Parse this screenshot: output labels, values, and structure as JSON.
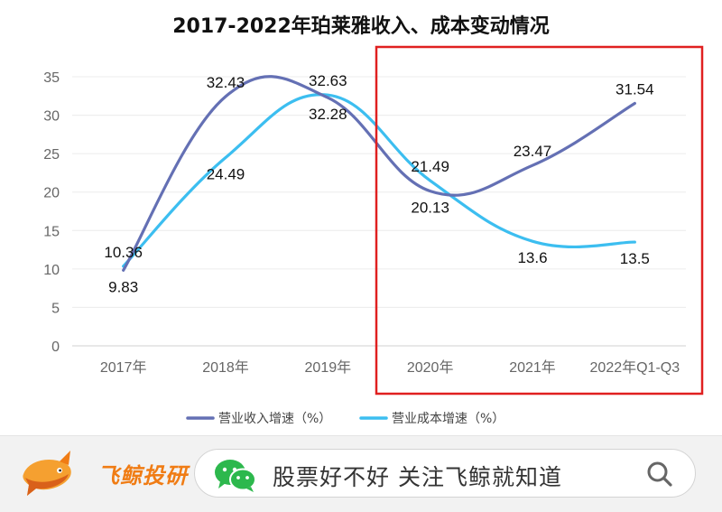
{
  "chart_data": {
    "type": "line",
    "title": "2017-2022年珀莱雅收入、成本变动情况",
    "categories": [
      "2017年",
      "2018年",
      "2019年",
      "2020年",
      "2021年",
      "2022年Q1-Q3"
    ],
    "ylim": [
      0,
      35
    ],
    "yticks": [
      "0",
      "5",
      "10",
      "15",
      "20",
      "25",
      "30",
      "35"
    ],
    "grid": true,
    "legend": "bottom",
    "smooth": true,
    "series": [
      {
        "name": "营业收入增速（%）",
        "color": "#6470b4",
        "values": [
          9.83,
          32.43,
          32.28,
          20.13,
          23.47,
          31.54
        ]
      },
      {
        "name": "营业成本增速（%）",
        "color": "#3cbef0",
        "values": [
          10.36,
          24.49,
          32.63,
          21.49,
          13.6,
          13.5
        ]
      }
    ],
    "data_labels": [
      {
        "series": 0,
        "index": 0,
        "text": "9.83"
      },
      {
        "series": 0,
        "index": 1,
        "text": "32.43"
      },
      {
        "series": 0,
        "index": 2,
        "text": "32.28"
      },
      {
        "series": 0,
        "index": 3,
        "text": "20.13"
      },
      {
        "series": 0,
        "index": 4,
        "text": "23.47"
      },
      {
        "series": 0,
        "index": 5,
        "text": "31.54"
      },
      {
        "series": 1,
        "index": 0,
        "text": "10.36"
      },
      {
        "series": 1,
        "index": 1,
        "text": "24.49"
      },
      {
        "series": 1,
        "index": 2,
        "text": "32.63"
      },
      {
        "series": 1,
        "index": 3,
        "text": "21.49"
      },
      {
        "series": 1,
        "index": 4,
        "text": "13.6"
      },
      {
        "series": 1,
        "index": 5,
        "text": "13.5"
      }
    ],
    "highlight": {
      "from_category": "2020年",
      "to_category": "2022年Q1-Q3",
      "color": "#e02020"
    }
  },
  "footer": {
    "brand": "飞鲸投研",
    "brand_color": "#f07c14",
    "search_text": "股票好不好  关注飞鲸就知道",
    "icons": {
      "logo": "whale-logo-icon",
      "wechat": "wechat-icon",
      "search": "search-icon"
    }
  }
}
